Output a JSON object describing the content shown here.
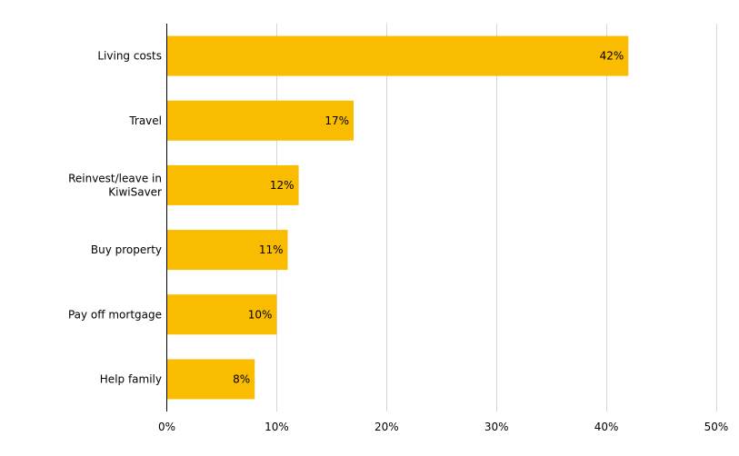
{
  "chart_data": {
    "type": "bar",
    "orientation": "horizontal",
    "title": "",
    "xlabel": "",
    "ylabel": "",
    "categories": [
      "Living costs",
      "Travel",
      "Reinvest/leave in KiwiSaver",
      "Buy property",
      "Pay off mortgage",
      "Help family"
    ],
    "category_lines": [
      [
        "Living costs"
      ],
      [
        "Travel"
      ],
      [
        "Reinvest/leave in",
        "KiwiSaver"
      ],
      [
        "Buy property"
      ],
      [
        "Pay off mortgage"
      ],
      [
        "Help family"
      ]
    ],
    "values": [
      42,
      17,
      12,
      11,
      10,
      8
    ],
    "value_labels": [
      "42%",
      "17%",
      "12%",
      "11%",
      "10%",
      "8%"
    ],
    "xlim": [
      0,
      50
    ],
    "x_ticks": [
      0,
      10,
      20,
      30,
      40,
      50
    ],
    "x_tick_labels": [
      "0%",
      "10%",
      "20%",
      "30%",
      "40%",
      "50%"
    ],
    "grid": "vertical",
    "legend": "none",
    "bar_color": "#F9BC00"
  }
}
